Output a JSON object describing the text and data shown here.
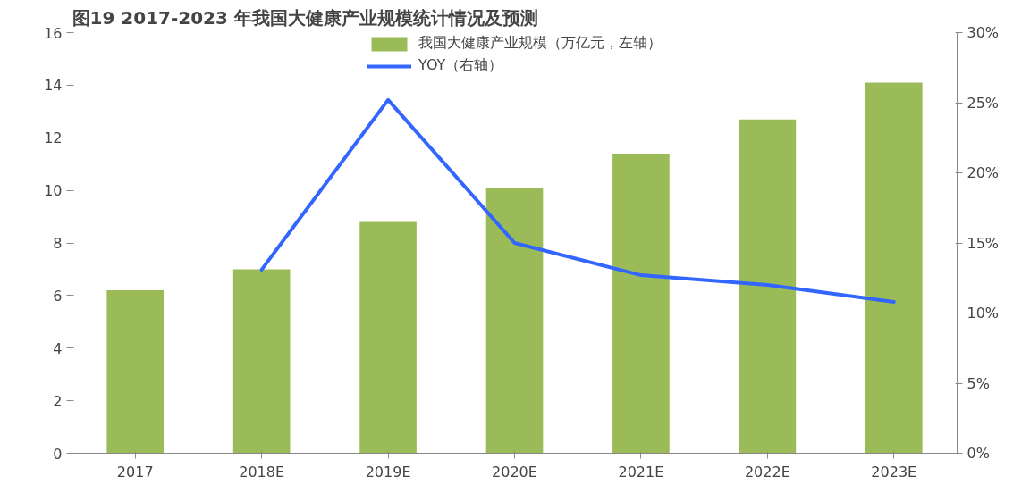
{
  "chart_data": {
    "type": "bar",
    "title": "图19 2017-2023 年我国大健康产业规模统计情况及预测",
    "categories": [
      "2017",
      "2018E",
      "2019E",
      "2020E",
      "2021E",
      "2022E",
      "2023E"
    ],
    "series": [
      {
        "name": "我国大健康产业规模（万亿元，左轴）",
        "color": "#9bbb59",
        "values": [
          6.2,
          7.0,
          8.8,
          10.1,
          11.4,
          12.7,
          14.1
        ]
      },
      {
        "name": "YOY（右轴）",
        "type": "line",
        "axis": "y2",
        "color": "#3366ff",
        "values": [
          null,
          13.1,
          25.2,
          15.0,
          12.7,
          12.0,
          10.8
        ]
      }
    ],
    "ylim": [
      0,
      16
    ],
    "yticks": [
      0,
      2,
      4,
      6,
      8,
      10,
      12,
      14,
      16
    ],
    "y2lim": [
      0,
      30
    ],
    "y2ticks": [
      {
        "value": 0,
        "label": "0%"
      },
      {
        "value": 5,
        "label": "5%"
      },
      {
        "value": 10,
        "label": "10%"
      },
      {
        "value": 15,
        "label": "15%"
      },
      {
        "value": 20,
        "label": "20%"
      },
      {
        "value": 25,
        "label": "25%"
      },
      {
        "value": 30,
        "label": "30%"
      }
    ],
    "grid": false,
    "legend": "top"
  }
}
